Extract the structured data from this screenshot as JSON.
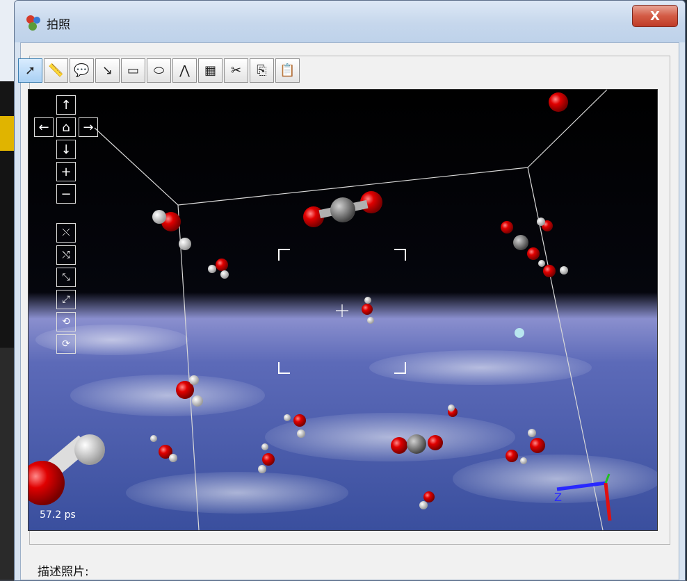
{
  "window": {
    "title": "拍照",
    "close_label": "X"
  },
  "toolbar": {
    "buttons": [
      {
        "name": "select-tool-button",
        "icon": "arrow-cursor-icon",
        "glyph": "➚"
      },
      {
        "name": "measure-tool-button",
        "icon": "ruler-icon",
        "glyph": "📏"
      },
      {
        "name": "annotate-tool-button",
        "icon": "speech-balloon-icon",
        "glyph": "💬"
      },
      {
        "name": "arrow-tool-button",
        "icon": "arrow-down-right-icon",
        "glyph": "↘"
      },
      {
        "name": "rectangle-tool-button",
        "icon": "rectangle-icon",
        "glyph": "▭"
      },
      {
        "name": "ellipse-tool-button",
        "icon": "ellipse-icon",
        "glyph": "⬭"
      },
      {
        "name": "angle-tool-button",
        "icon": "angle-icon",
        "glyph": "⋀"
      },
      {
        "name": "grid-tool-button",
        "icon": "grid-icon",
        "glyph": "▦"
      },
      {
        "name": "cut-button",
        "icon": "scissors-icon",
        "glyph": "✂"
      },
      {
        "name": "copy-button",
        "icon": "copy-icon",
        "glyph": "⎘"
      },
      {
        "name": "paste-button",
        "icon": "paste-icon",
        "glyph": "📋"
      }
    ]
  },
  "nav": {
    "up": "↑",
    "left": "←",
    "home": "⌂",
    "right": "→",
    "down": "↓",
    "zoom_in": "+",
    "zoom_out": "−"
  },
  "viewer": {
    "time_label": "57.2 ps",
    "axis_label": "Z"
  },
  "description": {
    "label": "描述照片:"
  },
  "colors": {
    "oxygen": "#e00000",
    "hydrogen": "#f2f2f2",
    "carbon": "#808080",
    "box_line": "#d8d8d8"
  }
}
